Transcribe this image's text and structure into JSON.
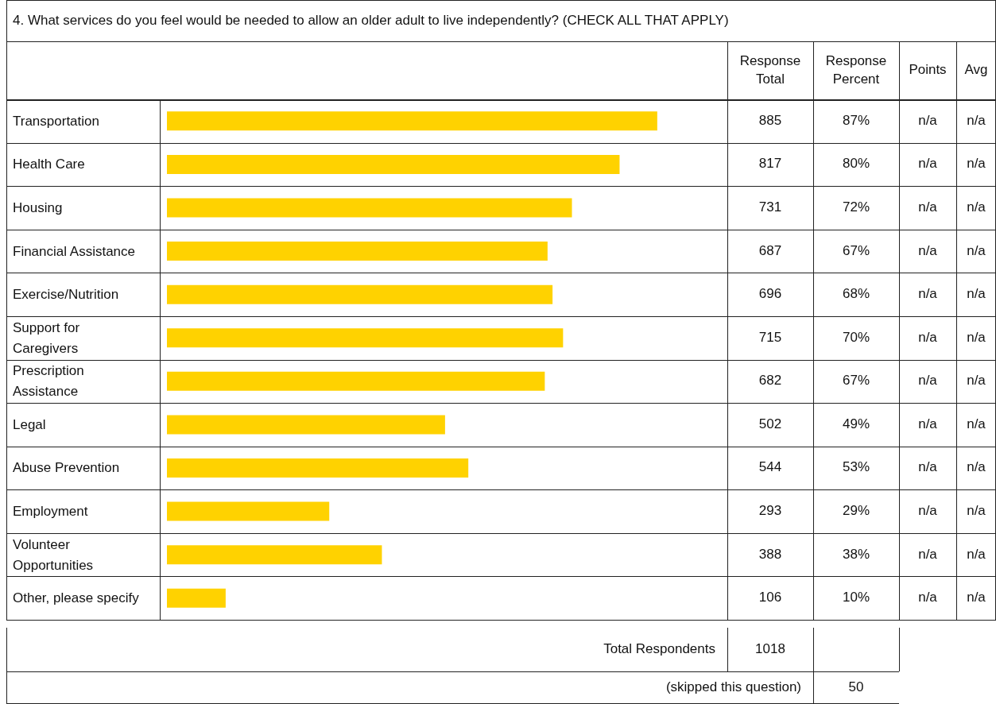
{
  "chart_data": {
    "type": "bar",
    "orientation": "horizontal",
    "title": "4. What services do you feel would be needed to allow an older adult to live independently? (CHECK ALL THAT APPLY)",
    "categories": [
      "Transportation",
      "Health Care",
      "Housing",
      "Financial Assistance",
      "Exercise/Nutrition",
      "Support for Caregivers",
      "Prescription Assistance",
      "Legal",
      "Abuse Prevention",
      "Employment",
      "Volunteer Opportunities",
      "Other, please specify"
    ],
    "values": [
      885,
      817,
      731,
      687,
      696,
      715,
      682,
      502,
      544,
      293,
      388,
      106
    ],
    "color": "#ffd200",
    "tick_labels": "y",
    "value_labels": [
      "885",
      "817",
      "731",
      "687",
      "696",
      "715",
      "682",
      "502",
      "544",
      "293",
      "388",
      "106"
    ],
    "annotations": [
      "Response Total",
      "Response Percent",
      "Points",
      "Avg",
      "87%",
      "n/a",
      "n/a",
      "80%",
      "n/a",
      "n/a",
      "72%",
      "n/a",
      "n/a",
      "67%",
      "n/a",
      "n/a",
      "68%",
      "n/a",
      "n/a",
      "70%",
      "n/a",
      "n/a",
      "67%",
      "n/a",
      "n/a",
      "49%",
      "n/a",
      "n/a",
      "53%",
      "n/a",
      "n/a",
      "29%",
      "n/a",
      "n/a",
      "38%",
      "n/a",
      "n/a",
      "10%",
      "n/a",
      "n/a",
      "Total Respondents",
      "1018",
      "(skipped this question)",
      "50"
    ]
  }
}
